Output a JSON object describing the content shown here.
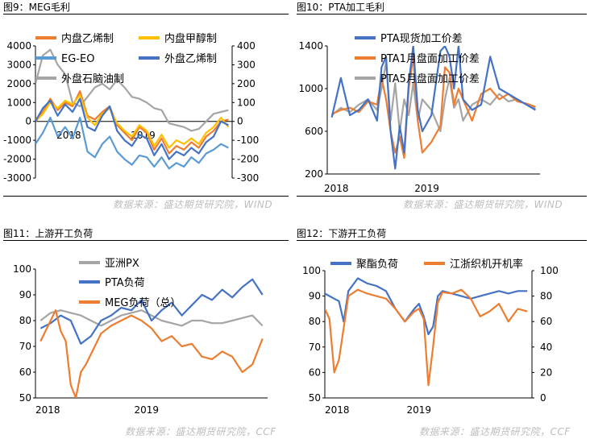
{
  "titles": {
    "p1": "图9：MEG毛利",
    "p2": "图10：PTA加工毛利",
    "p3": "图11：上游开工负荷",
    "p4": "图12：下游开工负荷"
  },
  "sources": {
    "top_left": "数据来源：盛达期货研究院，WIND",
    "top_right": "数据来源：盛达期货研究院，WIND",
    "bottom_left": "数据来源：盛达期货研究院，CCF",
    "bottom_right": "数据来源：盛达期货研究院，CCF"
  },
  "colors": {
    "orange": "#ED7D31",
    "yellow": "#FFC000",
    "lightblue": "#5B9BD5",
    "blue": "#4472C4",
    "gray": "#A5A5A5"
  },
  "chart_data": [
    {
      "id": "meg",
      "type": "line",
      "title": "MEG毛利",
      "x_ticks": [
        "2018",
        "2019"
      ],
      "y_left": {
        "ticks": [
          "4000",
          "3000",
          "2000",
          "1000",
          "0",
          "-1000",
          "-2000",
          "-3000"
        ],
        "lim": [
          -3000,
          4000
        ]
      },
      "y_right": {
        "ticks": [
          "400",
          "300",
          "200",
          "100",
          "0",
          "-100",
          "-200",
          "-300"
        ],
        "lim": [
          -300,
          400
        ]
      },
      "legend": [
        {
          "name": "内盘乙烯制",
          "color": "#ED7D31"
        },
        {
          "name": "内盘甲醇制",
          "color": "#FFC000"
        },
        {
          "name": "EG-EO",
          "color": "#5B9BD5"
        },
        {
          "name": "外盘乙烯制",
          "color": "#4472C4"
        },
        {
          "name": "外盘石脑油制",
          "color": "#A5A5A5"
        }
      ],
      "series": [
        {
          "name": "外盘石脑油制",
          "axis": "right",
          "color": "#A5A5A5",
          "x": [
            2017.55,
            2017.65,
            2017.75,
            2017.85,
            2017.95,
            2018.05,
            2018.15,
            2018.25,
            2018.35,
            2018.45,
            2018.55,
            2018.65,
            2018.75,
            2018.85,
            2018.95,
            2019.05,
            2019.15,
            2019.25,
            2019.35,
            2019.45,
            2019.55,
            2019.65,
            2019.75,
            2019.85,
            2019.95,
            2020.05,
            2020.15
          ],
          "values": [
            200,
            350,
            380,
            300,
            250,
            100,
            80,
            130,
            180,
            200,
            170,
            220,
            180,
            130,
            120,
            100,
            70,
            60,
            -10,
            -20,
            -30,
            -50,
            -40,
            0,
            40,
            50,
            60
          ]
        },
        {
          "name": "内盘乙烯制",
          "axis": "left",
          "color": "#ED7D31",
          "x": [
            2017.55,
            2017.65,
            2017.75,
            2017.85,
            2017.95,
            2018.05,
            2018.15,
            2018.25,
            2018.35,
            2018.45,
            2018.55,
            2018.65,
            2018.75,
            2018.85,
            2018.95,
            2019.05,
            2019.15,
            2019.25,
            2019.35,
            2019.45,
            2019.55,
            2019.65,
            2019.75,
            2019.85,
            2019.95,
            2020.05,
            2020.15
          ],
          "values": [
            100,
            500,
            1200,
            600,
            1000,
            800,
            1600,
            300,
            100,
            500,
            800,
            -200,
            -600,
            -1000,
            -300,
            -600,
            -1500,
            -900,
            -1700,
            -1300,
            -1500,
            -1100,
            -1400,
            -800,
            -500,
            0,
            100
          ]
        },
        {
          "name": "内盘甲醇制",
          "axis": "left",
          "color": "#FFC000",
          "x": [
            2017.55,
            2017.65,
            2017.75,
            2017.85,
            2017.95,
            2018.05,
            2018.15,
            2018.25,
            2018.35,
            2018.45,
            2018.55,
            2018.65,
            2018.75,
            2018.85,
            2018.95,
            2019.05,
            2019.15,
            2019.25,
            2019.35,
            2019.45,
            2019.55,
            2019.65,
            2019.75,
            2019.85,
            2019.95,
            2020.05,
            2020.15
          ],
          "values": [
            0,
            400,
            1000,
            700,
            1100,
            900,
            1400,
            200,
            -200,
            400,
            700,
            -100,
            -500,
            -800,
            -200,
            -500,
            -1300,
            -700,
            -1400,
            -1000,
            -1200,
            -900,
            -1200,
            -600,
            -300,
            200,
            -300
          ]
        },
        {
          "name": "EG-EO",
          "axis": "left",
          "color": "#5B9BD5",
          "x": [
            2017.55,
            2017.65,
            2017.75,
            2017.85,
            2017.95,
            2018.05,
            2018.15,
            2018.25,
            2018.35,
            2018.45,
            2018.55,
            2018.65,
            2018.75,
            2018.85,
            2018.95,
            2019.05,
            2019.15,
            2019.25,
            2019.35,
            2019.45,
            2019.55,
            2019.65,
            2019.75,
            2019.85,
            2019.95,
            2020.05,
            2020.15
          ],
          "values": [
            -1200,
            -600,
            200,
            -800,
            -300,
            -900,
            200,
            -1600,
            -1900,
            -1200,
            -800,
            -1600,
            -2000,
            -2300,
            -1800,
            -1900,
            -2400,
            -1900,
            -2500,
            -2200,
            -2400,
            -1900,
            -2200,
            -1700,
            -1500,
            -1200,
            -1400
          ]
        },
        {
          "name": "外盘乙烯制",
          "axis": "left",
          "color": "#4472C4",
          "x": [
            2017.55,
            2017.65,
            2017.75,
            2017.85,
            2017.95,
            2018.05,
            2018.15,
            2018.25,
            2018.35,
            2018.45,
            2018.55,
            2018.65,
            2018.75,
            2018.85,
            2018.95,
            2019.05,
            2019.15,
            2019.25,
            2019.35,
            2019.45,
            2019.55,
            2019.65,
            2019.75,
            2019.85,
            2019.95,
            2020.05,
            2020.15
          ],
          "values": [
            0,
            700,
            1100,
            300,
            900,
            500,
            1200,
            -300,
            -500,
            300,
            800,
            -500,
            -1000,
            -1300,
            -700,
            -900,
            -1800,
            -1200,
            -2000,
            -1600,
            -1800,
            -1400,
            -1700,
            -1100,
            -800,
            0,
            -200
          ]
        }
      ]
    },
    {
      "id": "pta",
      "type": "line",
      "title": "PTA加工毛利",
      "x_ticks": [
        "2018",
        "2019"
      ],
      "y_left": {
        "ticks": [
          "1400",
          "1000",
          "600",
          "200"
        ],
        "lim": [
          200,
          1400
        ]
      },
      "legend": [
        {
          "name": "PTA现货加工价差",
          "color": "#4472C4"
        },
        {
          "name": "PTA1月盘面加工价差",
          "color": "#ED7D31"
        },
        {
          "name": "PTA5月盘面加工价差",
          "color": "#A5A5A5"
        }
      ],
      "series": [
        {
          "name": "PTA5月盘面加工价差",
          "color": "#A5A5A5",
          "x": [
            2017.95,
            2018.05,
            2018.15,
            2018.25,
            2018.35,
            2018.45,
            2018.5,
            2018.55,
            2018.6,
            2018.65,
            2018.7,
            2018.75,
            2018.8,
            2018.85,
            2018.9,
            2018.95,
            2019.05,
            2019.15,
            2019.2,
            2019.25,
            2019.3,
            2019.35,
            2019.4,
            2019.5,
            2019.6,
            2019.7,
            2019.8,
            2019.9,
            2020.0,
            2020.1,
            2020.2
          ],
          "values": [
            750,
            820,
            780,
            850,
            900,
            800,
            1000,
            1250,
            700,
            1050,
            600,
            900,
            750,
            1050,
            700,
            900,
            800,
            600,
            900,
            1100,
            820,
            900,
            700,
            850,
            900,
            850,
            950,
            880,
            900,
            850,
            820
          ]
        },
        {
          "name": "PTA1月盘面加工价差",
          "color": "#ED7D31",
          "x": [
            2017.95,
            2018.05,
            2018.15,
            2018.25,
            2018.35,
            2018.45,
            2018.5,
            2018.55,
            2018.6,
            2018.65,
            2018.7,
            2018.75,
            2018.8,
            2018.85,
            2018.9,
            2018.95,
            2019.05,
            2019.15,
            2019.2,
            2019.25,
            2019.3,
            2019.35,
            2019.4,
            2019.5,
            2019.6,
            2019.7,
            2019.8,
            2019.9,
            2020.0,
            2020.1,
            2020.2
          ],
          "values": [
            760,
            800,
            820,
            780,
            880,
            850,
            1100,
            900,
            600,
            400,
            550,
            350,
            1000,
            1300,
            700,
            400,
            500,
            650,
            1200,
            1150,
            850,
            1000,
            900,
            700,
            950,
            1000,
            900,
            950,
            880,
            860,
            830
          ]
        },
        {
          "name": "PTA现货加工价差",
          "color": "#4472C4",
          "x": [
            2017.95,
            2018.05,
            2018.15,
            2018.25,
            2018.35,
            2018.45,
            2018.5,
            2018.55,
            2018.6,
            2018.65,
            2018.7,
            2018.75,
            2018.8,
            2018.85,
            2018.9,
            2018.95,
            2019.05,
            2019.15,
            2019.2,
            2019.25,
            2019.3,
            2019.35,
            2019.4,
            2019.5,
            2019.6,
            2019.7,
            2019.8,
            2019.9,
            2020.0,
            2020.1,
            2020.2
          ],
          "values": [
            730,
            1100,
            750,
            800,
            900,
            700,
            1200,
            1300,
            600,
            250,
            650,
            400,
            1050,
            1400,
            800,
            600,
            750,
            1350,
            1400,
            1300,
            1000,
            1400,
            900,
            800,
            850,
            1300,
            1000,
            950,
            900,
            850,
            800
          ]
        }
      ]
    },
    {
      "id": "upstream",
      "type": "line",
      "title": "上游开工负荷",
      "x_ticks": [
        "2018",
        "2019"
      ],
      "y_left": {
        "ticks": [
          "100",
          "90",
          "80",
          "70",
          "60",
          "50"
        ],
        "lim": [
          50,
          100
        ]
      },
      "legend": [
        {
          "name": "亚洲PX",
          "color": "#A5A5A5"
        },
        {
          "name": "PTA负荷",
          "color": "#4472C4"
        },
        {
          "name": "MEG负荷（总）",
          "color": "#ED7D31"
        }
      ],
      "series": [
        {
          "name": "亚洲PX",
          "color": "#A5A5A5",
          "x": [
            2017.9,
            2018.0,
            2018.1,
            2018.2,
            2018.3,
            2018.4,
            2018.5,
            2018.6,
            2018.7,
            2018.8,
            2018.9,
            2019.0,
            2019.1,
            2019.2,
            2019.3,
            2019.4,
            2019.5,
            2019.6,
            2019.7,
            2019.8,
            2019.9,
            2020.0,
            2020.1
          ],
          "values": [
            80,
            83,
            84,
            83,
            82,
            80,
            78,
            80,
            82,
            83,
            84,
            82,
            80,
            79,
            78,
            80,
            80,
            79,
            79,
            80,
            81,
            82,
            78
          ]
        },
        {
          "name": "PTA负荷",
          "color": "#4472C4",
          "x": [
            2017.9,
            2018.0,
            2018.1,
            2018.2,
            2018.3,
            2018.4,
            2018.5,
            2018.6,
            2018.7,
            2018.8,
            2018.9,
            2019.0,
            2019.1,
            2019.2,
            2019.3,
            2019.4,
            2019.5,
            2019.6,
            2019.7,
            2019.8,
            2019.9,
            2020.0,
            2020.1
          ],
          "values": [
            77,
            79,
            82,
            80,
            71,
            74,
            80,
            82,
            85,
            84,
            88,
            80,
            84,
            87,
            82,
            86,
            90,
            88,
            92,
            89,
            93,
            96,
            90
          ]
        },
        {
          "name": "MEG负荷（总）",
          "color": "#ED7D31",
          "x": [
            2017.9,
            2018.0,
            2018.05,
            2018.1,
            2018.15,
            2018.2,
            2018.25,
            2018.3,
            2018.35,
            2018.4,
            2018.5,
            2018.6,
            2018.7,
            2018.8,
            2018.9,
            2019.0,
            2019.1,
            2019.2,
            2019.3,
            2019.4,
            2019.5,
            2019.6,
            2019.7,
            2019.8,
            2019.9,
            2020.0,
            2020.1
          ],
          "values": [
            72,
            80,
            84,
            76,
            72,
            55,
            50,
            60,
            63,
            67,
            75,
            78,
            80,
            82,
            80,
            77,
            72,
            74,
            70,
            71,
            66,
            65,
            68,
            66,
            60,
            63,
            73
          ]
        }
      ]
    },
    {
      "id": "downstream",
      "type": "line",
      "title": "下游开工负荷",
      "x_ticks": [
        "2018",
        "2019"
      ],
      "y_left": {
        "ticks": [
          "100",
          "90",
          "80",
          "70",
          "60",
          "50"
        ],
        "lim": [
          50,
          100
        ]
      },
      "y_right": {
        "ticks": [
          "100",
          "80",
          "60",
          "40",
          "20",
          "0"
        ],
        "lim": [
          0,
          100
        ]
      },
      "legend": [
        {
          "name": "聚酯负荷",
          "color": "#4472C4"
        },
        {
          "name": "江浙织机开机率",
          "color": "#ED7D31"
        }
      ],
      "series": [
        {
          "name": "聚酯负荷",
          "axis": "left",
          "color": "#4472C4",
          "x": [
            2017.95,
            2018.0,
            2018.05,
            2018.1,
            2018.15,
            2018.2,
            2018.3,
            2018.4,
            2018.5,
            2018.6,
            2018.7,
            2018.8,
            2018.9,
            2018.95,
            2019.0,
            2019.05,
            2019.1,
            2019.15,
            2019.2,
            2019.3,
            2019.4,
            2019.5,
            2019.6,
            2019.7,
            2019.8,
            2019.9,
            2020.0,
            2020.1
          ],
          "values": [
            91,
            90,
            89,
            88,
            80,
            92,
            97,
            95,
            94,
            92,
            85,
            80,
            85,
            87,
            82,
            75,
            78,
            90,
            92,
            91,
            90,
            89,
            90,
            91,
            92,
            91,
            92,
            92
          ]
        },
        {
          "name": "江浙织机开机率",
          "axis": "right",
          "color": "#ED7D31",
          "x": [
            2017.95,
            2018.0,
            2018.05,
            2018.1,
            2018.15,
            2018.2,
            2018.3,
            2018.4,
            2018.5,
            2018.6,
            2018.7,
            2018.8,
            2018.9,
            2018.95,
            2019.0,
            2019.05,
            2019.1,
            2019.15,
            2019.2,
            2019.3,
            2019.4,
            2019.5,
            2019.6,
            2019.7,
            2019.8,
            2019.9,
            2020.0,
            2020.1
          ],
          "values": [
            70,
            62,
            20,
            30,
            55,
            80,
            85,
            82,
            80,
            78,
            70,
            60,
            68,
            70,
            62,
            10,
            40,
            75,
            83,
            82,
            85,
            78,
            64,
            68,
            74,
            60,
            70,
            68
          ]
        }
      ]
    }
  ]
}
